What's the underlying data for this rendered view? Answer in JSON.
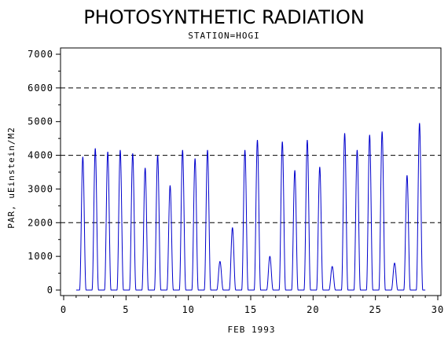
{
  "chart_data": {
    "type": "line",
    "title": "PHOTOSYNTHETIC RADIATION",
    "subtitle": "STATION=HOGI",
    "xlabel": "FEB 1993",
    "ylabel": "PAR, uEinstein/M2",
    "xlim": [
      0,
      30
    ],
    "ylim": [
      0,
      7000
    ],
    "xticks": [
      0,
      5,
      10,
      15,
      20,
      25,
      30
    ],
    "yticks": [
      0,
      1000,
      2000,
      3000,
      4000,
      5000,
      6000,
      7000
    ],
    "reference_lines": [
      2000,
      4000,
      6000
    ],
    "grid": false,
    "legend": "none",
    "series_color": "#0000cc",
    "series": [
      {
        "daily_peaks": [
          {
            "day": 1.55,
            "peak": 3950
          },
          {
            "day": 2.55,
            "peak": 4200
          },
          {
            "day": 3.55,
            "peak": 4100
          },
          {
            "day": 4.55,
            "peak": 4150
          },
          {
            "day": 5.55,
            "peak": 4050
          },
          {
            "day": 6.55,
            "peak": 3620
          },
          {
            "day": 7.55,
            "peak": 4000
          },
          {
            "day": 8.55,
            "peak": 3100
          },
          {
            "day": 9.55,
            "peak": 4150
          },
          {
            "day": 10.55,
            "peak": 3900
          },
          {
            "day": 11.55,
            "peak": 4150
          },
          {
            "day": 12.55,
            "peak": 850
          },
          {
            "day": 13.55,
            "peak": 1850
          },
          {
            "day": 14.55,
            "peak": 4150
          },
          {
            "day": 15.55,
            "peak": 4450
          },
          {
            "day": 16.55,
            "peak": 1000
          },
          {
            "day": 17.55,
            "peak": 4400
          },
          {
            "day": 18.55,
            "peak": 3550
          },
          {
            "day": 19.55,
            "peak": 4450
          },
          {
            "day": 20.55,
            "peak": 3650
          },
          {
            "day": 21.55,
            "peak": 700
          },
          {
            "day": 22.55,
            "peak": 4650
          },
          {
            "day": 23.55,
            "peak": 4150
          },
          {
            "day": 24.55,
            "peak": 4600
          },
          {
            "day": 25.55,
            "peak": 4700
          },
          {
            "day": 26.55,
            "peak": 800
          },
          {
            "day": 27.55,
            "peak": 3400
          },
          {
            "day": 28.55,
            "peak": 4950
          }
        ]
      }
    ]
  }
}
